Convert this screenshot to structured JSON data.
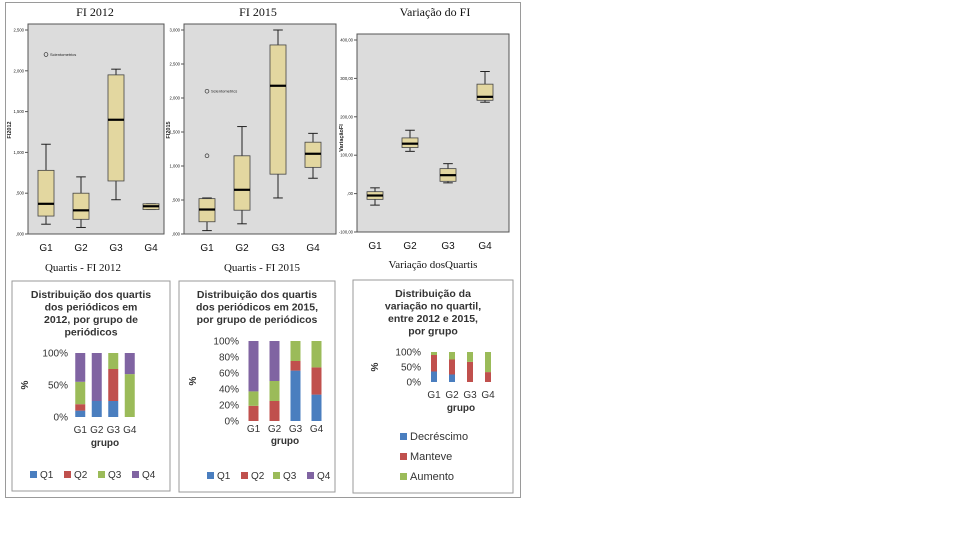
{
  "colors": {
    "box_fill": "#e3d7a0",
    "plot_bg": "#dcdcdc",
    "q1": "#4a7ebf",
    "q2": "#c0504d",
    "q3": "#9bbb59",
    "q4": "#8064a2"
  },
  "chart_data": [
    {
      "type": "box",
      "id": "fi2012",
      "title": "FI 2012",
      "ylabel": "FI2012",
      "categories": [
        "G1",
        "G2",
        "G3",
        "G4"
      ],
      "ylim": [
        0,
        2.5
      ],
      "yticks": [
        ",000",
        ",500",
        "1,000",
        "1,500",
        "2,000",
        "2,500"
      ],
      "boxes": [
        {
          "min": 0.12,
          "q1": 0.22,
          "median": 0.37,
          "q3": 0.78,
          "max": 1.1
        },
        {
          "min": 0.08,
          "q1": 0.18,
          "median": 0.29,
          "q3": 0.5,
          "max": 0.7
        },
        {
          "min": 0.42,
          "q1": 0.65,
          "median": 1.4,
          "q3": 1.95,
          "max": 2.02
        },
        {
          "min": 0.3,
          "q1": 0.3,
          "median": 0.34,
          "q3": 0.37,
          "max": 0.37
        }
      ],
      "outliers": [
        {
          "group": "G1",
          "value": 2.2,
          "label": "Scientometrics"
        }
      ]
    },
    {
      "type": "box",
      "id": "fi2015",
      "title": "FI 2015",
      "ylabel": "FI2015",
      "categories": [
        "G1",
        "G2",
        "G3",
        "G4"
      ],
      "ylim": [
        0,
        3
      ],
      "yticks": [
        ",000",
        ",500",
        "1,000",
        "1,500",
        "2,000",
        "2,500",
        "3,000"
      ],
      "boxes": [
        {
          "min": 0.05,
          "q1": 0.18,
          "median": 0.36,
          "q3": 0.52,
          "max": 0.53
        },
        {
          "min": 0.15,
          "q1": 0.35,
          "median": 0.65,
          "q3": 1.15,
          "max": 1.58
        },
        {
          "min": 0.53,
          "q1": 0.88,
          "median": 2.18,
          "q3": 2.78,
          "max": 3.0
        },
        {
          "min": 0.82,
          "q1": 0.98,
          "median": 1.18,
          "q3": 1.35,
          "max": 1.48
        }
      ],
      "outliers": [
        {
          "group": "G1",
          "value": 2.1,
          "label": "Scientometrics"
        },
        {
          "group": "G1",
          "value": 1.15,
          "label": ""
        }
      ]
    },
    {
      "type": "box",
      "id": "variacao",
      "title": "Variação do FI",
      "ylabel": "VariaçãoFI",
      "categories": [
        "G1",
        "G2",
        "G3",
        "G4"
      ],
      "ylim": [
        -100,
        400
      ],
      "yticks": [
        "-100,00",
        ",00",
        "100,00",
        "200,00",
        "300,00",
        "400,00"
      ],
      "boxes": [
        {
          "min": -30,
          "q1": -15,
          "median": -5,
          "q3": 5,
          "max": 15
        },
        {
          "min": 110,
          "q1": 120,
          "median": 130,
          "q3": 145,
          "max": 165
        },
        {
          "min": 28,
          "q1": 32,
          "median": 48,
          "q3": 65,
          "max": 78
        },
        {
          "min": 238,
          "q1": 243,
          "median": 252,
          "q3": 285,
          "max": 318
        }
      ],
      "outliers": []
    },
    {
      "type": "stacked-bar",
      "id": "quartis2012",
      "caption": "Quartis - FI 2012",
      "title": "Distribuição dos quartis dos periódicos em 2012, por grupo de periódicos",
      "title_lines": [
        "Distribuição dos quartis",
        "dos periódicos em",
        "2012, por grupo de",
        "periódicos"
      ],
      "xlabel": "grupo",
      "ylabel": "%",
      "yticks": [
        "0%",
        "50%",
        "100%"
      ],
      "categories": [
        "G1",
        "G2",
        "G3",
        "G4"
      ],
      "series": [
        {
          "name": "Q1",
          "values": [
            10,
            25,
            25,
            0
          ]
        },
        {
          "name": "Q2",
          "values": [
            10,
            0,
            50,
            0
          ]
        },
        {
          "name": "Q3",
          "values": [
            35,
            0,
            25,
            67
          ]
        },
        {
          "name": "Q4",
          "values": [
            45,
            75,
            0,
            33
          ]
        }
      ]
    },
    {
      "type": "stacked-bar",
      "id": "quartis2015",
      "caption": "Quartis - FI 2015",
      "title": "Distribuição dos quartis dos periódicos em 2015, por grupo de periódicos",
      "title_lines": [
        "Distribuição dos quartis",
        "dos periódicos em 2015,",
        "por grupo de periódicos"
      ],
      "xlabel": "grupo",
      "ylabel": "%",
      "yticks": [
        "0%",
        "20%",
        "40%",
        "60%",
        "80%",
        "100%"
      ],
      "categories": [
        "G1",
        "G2",
        "G3",
        "G4"
      ],
      "series": [
        {
          "name": "Q1",
          "values": [
            0,
            0,
            63,
            33
          ]
        },
        {
          "name": "Q2",
          "values": [
            19,
            25,
            12,
            34
          ]
        },
        {
          "name": "Q3",
          "values": [
            18,
            25,
            25,
            33
          ]
        },
        {
          "name": "Q4",
          "values": [
            63,
            50,
            0,
            0
          ]
        }
      ]
    },
    {
      "type": "stacked-bar",
      "id": "variacao_quartis",
      "caption": "Variação dosQuartis",
      "title": "Distribuição da variação no quartil, entre 2012 e 2015, por grupo",
      "title_lines": [
        "Distribuição da",
        "variação no quartil,",
        "entre 2012 e 2015,",
        "por grupo"
      ],
      "xlabel": "grupo",
      "ylabel": "%",
      "yticks": [
        "0%",
        "50%",
        "100%"
      ],
      "categories": [
        "G1",
        "G2",
        "G3",
        "G4"
      ],
      "series": [
        {
          "name": "Decréscimo",
          "values": [
            35,
            25,
            0,
            0
          ]
        },
        {
          "name": "Manteve",
          "values": [
            55,
            50,
            67,
            33
          ]
        },
        {
          "name": "Aumento",
          "values": [
            10,
            25,
            33,
            67
          ]
        }
      ]
    }
  ]
}
